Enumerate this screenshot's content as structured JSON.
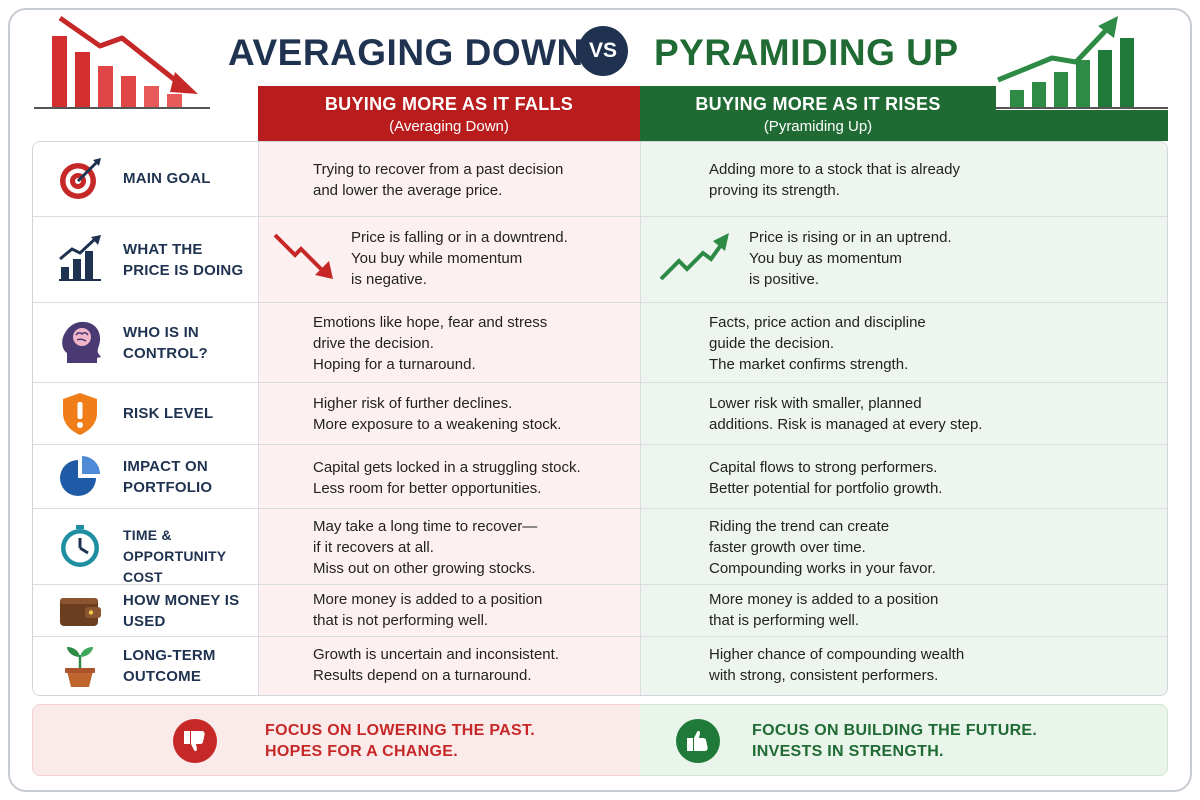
{
  "header": {
    "title_left": "AVERAGING DOWN",
    "vs": "VS",
    "title_right": "PYRAMIDING UP",
    "left_column_title": "BUYING MORE AS IT FALLS",
    "left_column_subtitle": "(Averaging Down)",
    "right_column_title": "BUYING MORE AS IT RISES",
    "right_column_subtitle": "(Pyramiding Up)"
  },
  "colors": {
    "red": "#b91c1c",
    "green": "#1f6b33",
    "navy": "#1f3350",
    "left_bg": "#fdf0f0",
    "right_bg": "#eef5ee"
  },
  "rows": [
    {
      "label": "MAIN GOAL",
      "icon": "target-icon",
      "left": "Trying to recover from a past decision\nand lower the average price.",
      "right": "Adding more to a stock that is already\nproving its strength."
    },
    {
      "label": "WHAT THE PRICE IS DOING",
      "icon": "rising-bar-chart-icon",
      "left": "Price is falling or in a downtrend.\nYou buy while momentum\nis negative.",
      "right": "Price is rising or in an uptrend.\nYou buy as momentum\nis positive."
    },
    {
      "label": "WHO IS IN CONTROL?",
      "icon": "head-brain-icon",
      "left": "Emotions like hope, fear and stress\ndrive the decision.\nHoping for a turnaround.",
      "right": "Facts, price action and discipline\nguide the decision.\nThe market confirms strength."
    },
    {
      "label": "RISK LEVEL",
      "icon": "warning-shield-icon",
      "left": "Higher risk of further declines.\nMore exposure to a weakening stock.",
      "right": "Lower risk with smaller, planned\nadditions. Risk is managed at every step."
    },
    {
      "label": "IMPACT ON PORTFOLIO",
      "icon": "pie-chart-icon",
      "left": "Capital gets locked in a struggling stock.\nLess room for better opportunities.",
      "right": "Capital flows to strong performers.\nBetter potential for portfolio growth."
    },
    {
      "label": "TIME & OPPORTUNITY COST",
      "icon": "clock-icon",
      "left": "May take a long time to recover—\nif it recovers at all.\nMiss out on other growing stocks.",
      "right": "Riding the trend can create\nfaster growth over time.\nCompounding works in your favor."
    },
    {
      "label": "HOW MONEY IS USED",
      "icon": "wallet-icon",
      "left": "More money is added to a position\nthat is not performing well.",
      "right": "More money is added to a position\nthat is performing well."
    },
    {
      "label": "LONG-TERM OUTCOME",
      "icon": "plant-sprout-icon",
      "left": "Growth is uncertain and inconsistent.\nResults depend on a turnaround.",
      "right": "Higher chance of compounding wealth\nwith strong, consistent performers."
    }
  ],
  "footer": {
    "left_line1": "FOCUS ON LOWERING THE PAST.",
    "left_line2": "HOPES FOR A CHANGE.",
    "left_icon": "thumbs-down-icon",
    "right_line1": "FOCUS ON BUILDING THE FUTURE.",
    "right_line2": "INVESTS IN STRENGTH.",
    "right_icon": "thumbs-up-icon"
  }
}
